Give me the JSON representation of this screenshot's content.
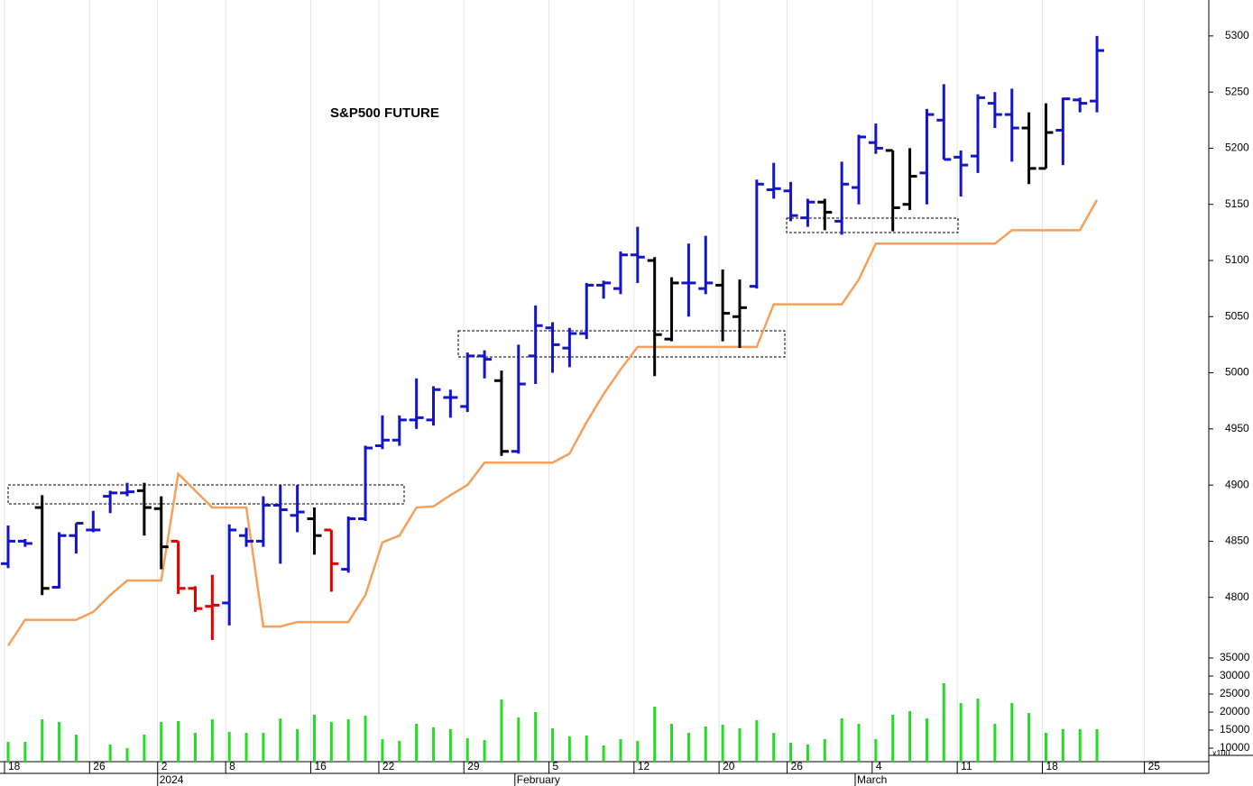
{
  "chart_data": {
    "type": "ohlc",
    "title": "S&P500 FUTURE",
    "categories": [
      "18",
      null,
      null,
      null,
      null,
      "26",
      null,
      null,
      null,
      "2",
      null,
      null,
      null,
      "8",
      null,
      null,
      null,
      null,
      "16",
      null,
      null,
      null,
      "22",
      null,
      null,
      null,
      null,
      "29",
      null,
      null,
      null,
      null,
      "5",
      null,
      null,
      null,
      null,
      "12",
      null,
      null,
      null,
      null,
      "20",
      null,
      null,
      null,
      "26",
      null,
      null,
      null,
      null,
      "4",
      null,
      null,
      null,
      null,
      "11",
      null,
      null,
      null,
      null,
      "18",
      null,
      null,
      null,
      null,
      null,
      "25",
      null,
      null,
      null,
      null
    ],
    "months": [
      null,
      null,
      null,
      null,
      null,
      null,
      null,
      null,
      null,
      "2024",
      null,
      null,
      null,
      null,
      null,
      null,
      null,
      null,
      null,
      null,
      null,
      null,
      null,
      null,
      null,
      null,
      null,
      null,
      null,
      null,
      "February",
      null,
      null,
      null,
      null,
      null,
      null,
      null,
      null,
      null,
      null,
      null,
      null,
      null,
      null,
      null,
      null,
      null,
      null,
      null,
      "March",
      null,
      null,
      null,
      null,
      null,
      null,
      null,
      null,
      null,
      null,
      null,
      null,
      null,
      null,
      null,
      null,
      null,
      null,
      null,
      null
    ],
    "open": [
      4830,
      4850,
      4880,
      4809,
      4855,
      4860,
      4890,
      4893,
      4895,
      4879,
      4850,
      4808,
      4792,
      4795,
      4855,
      4850,
      4882,
      4873,
      4870,
      4860,
      4825,
      4870,
      4935,
      4940,
      4958,
      4958,
      4978,
      4970,
      5015,
      4993,
      4930,
      5015,
      5040,
      5022,
      5035,
      5078,
      5075,
      5105,
      5100,
      5030,
      5080,
      5075,
      5078,
      5050,
      5077,
      5163,
      5162,
      5138,
      5152,
      5135,
      5165,
      5205,
      5198,
      5150,
      5178,
      5225,
      5192,
      5193,
      5240,
      5230,
      5218,
      5182,
      5216,
      5243,
      5242,
      null,
      null,
      null,
      null,
      null,
      null
    ],
    "high": [
      4864,
      4852,
      4891,
      4858,
      4866,
      4877,
      4895,
      4902,
      4902,
      4890,
      4850,
      4810,
      4820,
      4865,
      4862,
      4890,
      4900,
      4900,
      4880,
      4860,
      4872,
      4935,
      4962,
      4962,
      4995,
      4988,
      4985,
      5018,
      5020,
      5002,
      5025,
      5060,
      5045,
      5040,
      5080,
      5082,
      5108,
      5130,
      5103,
      5085,
      5115,
      5122,
      5092,
      5083,
      5172,
      5187,
      5170,
      5155,
      5155,
      5188,
      5212,
      5222,
      5198,
      5200,
      5235,
      5257,
      5198,
      5248,
      5250,
      5253,
      5232,
      5240,
      5245,
      5245,
      5300,
      null,
      null,
      null,
      null,
      null,
      null
    ],
    "low": [
      4826,
      4845,
      4802,
      4808,
      4839,
      4858,
      4875,
      4890,
      4855,
      4825,
      4803,
      4787,
      4762,
      4775,
      4845,
      4845,
      4830,
      4858,
      4838,
      4805,
      4822,
      4868,
      4932,
      4935,
      4950,
      4953,
      4960,
      4965,
      4995,
      4926,
      4928,
      4990,
      5000,
      5005,
      5030,
      5066,
      5070,
      5080,
      4997,
      5028,
      5050,
      5070,
      5028,
      5022,
      5075,
      5155,
      5135,
      5130,
      5127,
      5123,
      5150,
      5195,
      5126,
      5145,
      5150,
      5190,
      5157,
      5178,
      5218,
      5188,
      5168,
      5182,
      5185,
      5232,
      5232,
      null,
      null,
      null,
      null,
      null,
      null
    ],
    "close": [
      4850,
      4848,
      4808,
      4855,
      4866,
      4860,
      4893,
      4894,
      4880,
      4845,
      4808,
      4790,
      4793,
      4860,
      4850,
      4882,
      4878,
      4876,
      4855,
      4830,
      4870,
      4933,
      4940,
      4958,
      4960,
      4985,
      4978,
      5015,
      5012,
      4930,
      4990,
      5042,
      5025,
      5035,
      5078,
      5080,
      5105,
      5103,
      5034,
      5080,
      5080,
      5080,
      5053,
      5058,
      5168,
      5164,
      5140,
      5152,
      5143,
      5168,
      5210,
      5200,
      5147,
      5175,
      5230,
      5190,
      5185,
      5245,
      5230,
      5218,
      5182,
      5214,
      5244,
      5240,
      5287,
      null,
      null,
      null,
      null,
      null,
      null
    ],
    "bar_colors": [
      "#1414c8",
      "#1414c8",
      "#000000",
      "#1414c8",
      "#1414c8",
      "#1414c8",
      "#1414c8",
      "#1414c8",
      "#000000",
      "#000000",
      "#e00000",
      "#e00000",
      "#e00000",
      "#1414c8",
      "#1414c8",
      "#1414c8",
      "#1414c8",
      "#1414c8",
      "#000000",
      "#e00000",
      "#1414c8",
      "#1414c8",
      "#1414c8",
      "#1414c8",
      "#1414c8",
      "#1414c8",
      "#1414c8",
      "#1414c8",
      "#1414c8",
      "#000000",
      "#1414c8",
      "#1414c8",
      "#1414c8",
      "#1414c8",
      "#1414c8",
      "#1414c8",
      "#1414c8",
      "#1414c8",
      "#000000",
      "#000000",
      "#1414c8",
      "#1414c8",
      "#000000",
      "#000000",
      "#1414c8",
      "#1414c8",
      "#1414c8",
      "#1414c8",
      "#000000",
      "#1414c8",
      "#1414c8",
      "#1414c8",
      "#000000",
      "#000000",
      "#1414c8",
      "#1414c8",
      "#1414c8",
      "#1414c8",
      "#1414c8",
      "#1414c8",
      "#000000",
      "#000000",
      "#1414c8",
      "#1414c8",
      "#1414c8",
      null,
      null,
      null,
      null,
      null,
      null
    ],
    "line": {
      "color": "#f5a05a",
      "values": [
        4757,
        4780,
        4780,
        4780,
        4780,
        4787,
        4802,
        4815,
        4815,
        4815,
        4910,
        4895,
        4880,
        4880,
        4880,
        4774,
        4774,
        4778,
        4778,
        4778,
        4778,
        4802,
        4849,
        4855,
        4880,
        4881,
        4891,
        4900,
        4920,
        4920,
        4920,
        4920,
        4920,
        4928,
        4956,
        4981,
        5003,
        5023,
        5023,
        5023,
        5023,
        5023,
        5023,
        5023,
        5023,
        5061,
        5061,
        5061,
        5061,
        5061,
        5083,
        5115,
        5115,
        5115,
        5115,
        5115,
        5115,
        5115,
        5115,
        5127,
        5127,
        5127,
        5127,
        5127,
        5154,
        null,
        null,
        null,
        null,
        null,
        null
      ]
    },
    "ylim": [
      4754,
      5332
    ],
    "yticks": [
      4800,
      4850,
      4900,
      4950,
      5000,
      5050,
      5100,
      5150,
      5200,
      5250,
      5300
    ],
    "volume": {
      "color": "#22dd22",
      "unit_label": "x100",
      "ylim": [
        6250,
        35000
      ],
      "yticks": [
        10000,
        15000,
        20000,
        25000,
        30000,
        35000
      ],
      "values": [
        11750,
        11750,
        18000,
        17250,
        13750,
        null,
        11000,
        10000,
        13750,
        17250,
        17500,
        14250,
        18000,
        14500,
        14250,
        14250,
        18250,
        15250,
        19250,
        17250,
        18000,
        19000,
        12500,
        12000,
        16750,
        15750,
        15250,
        12750,
        12250,
        23500,
        18500,
        20000,
        15500,
        13250,
        13500,
        10750,
        12500,
        12000,
        21500,
        16750,
        14250,
        16000,
        16500,
        15500,
        17750,
        14250,
        11500,
        11000,
        12500,
        18250,
        16750,
        12500,
        19250,
        20250,
        18250,
        28000,
        22500,
        23750,
        16750,
        22500,
        19750,
        14250,
        15250,
        15250,
        15250,
        null,
        null,
        null,
        null,
        null,
        null
      ]
    }
  }
}
